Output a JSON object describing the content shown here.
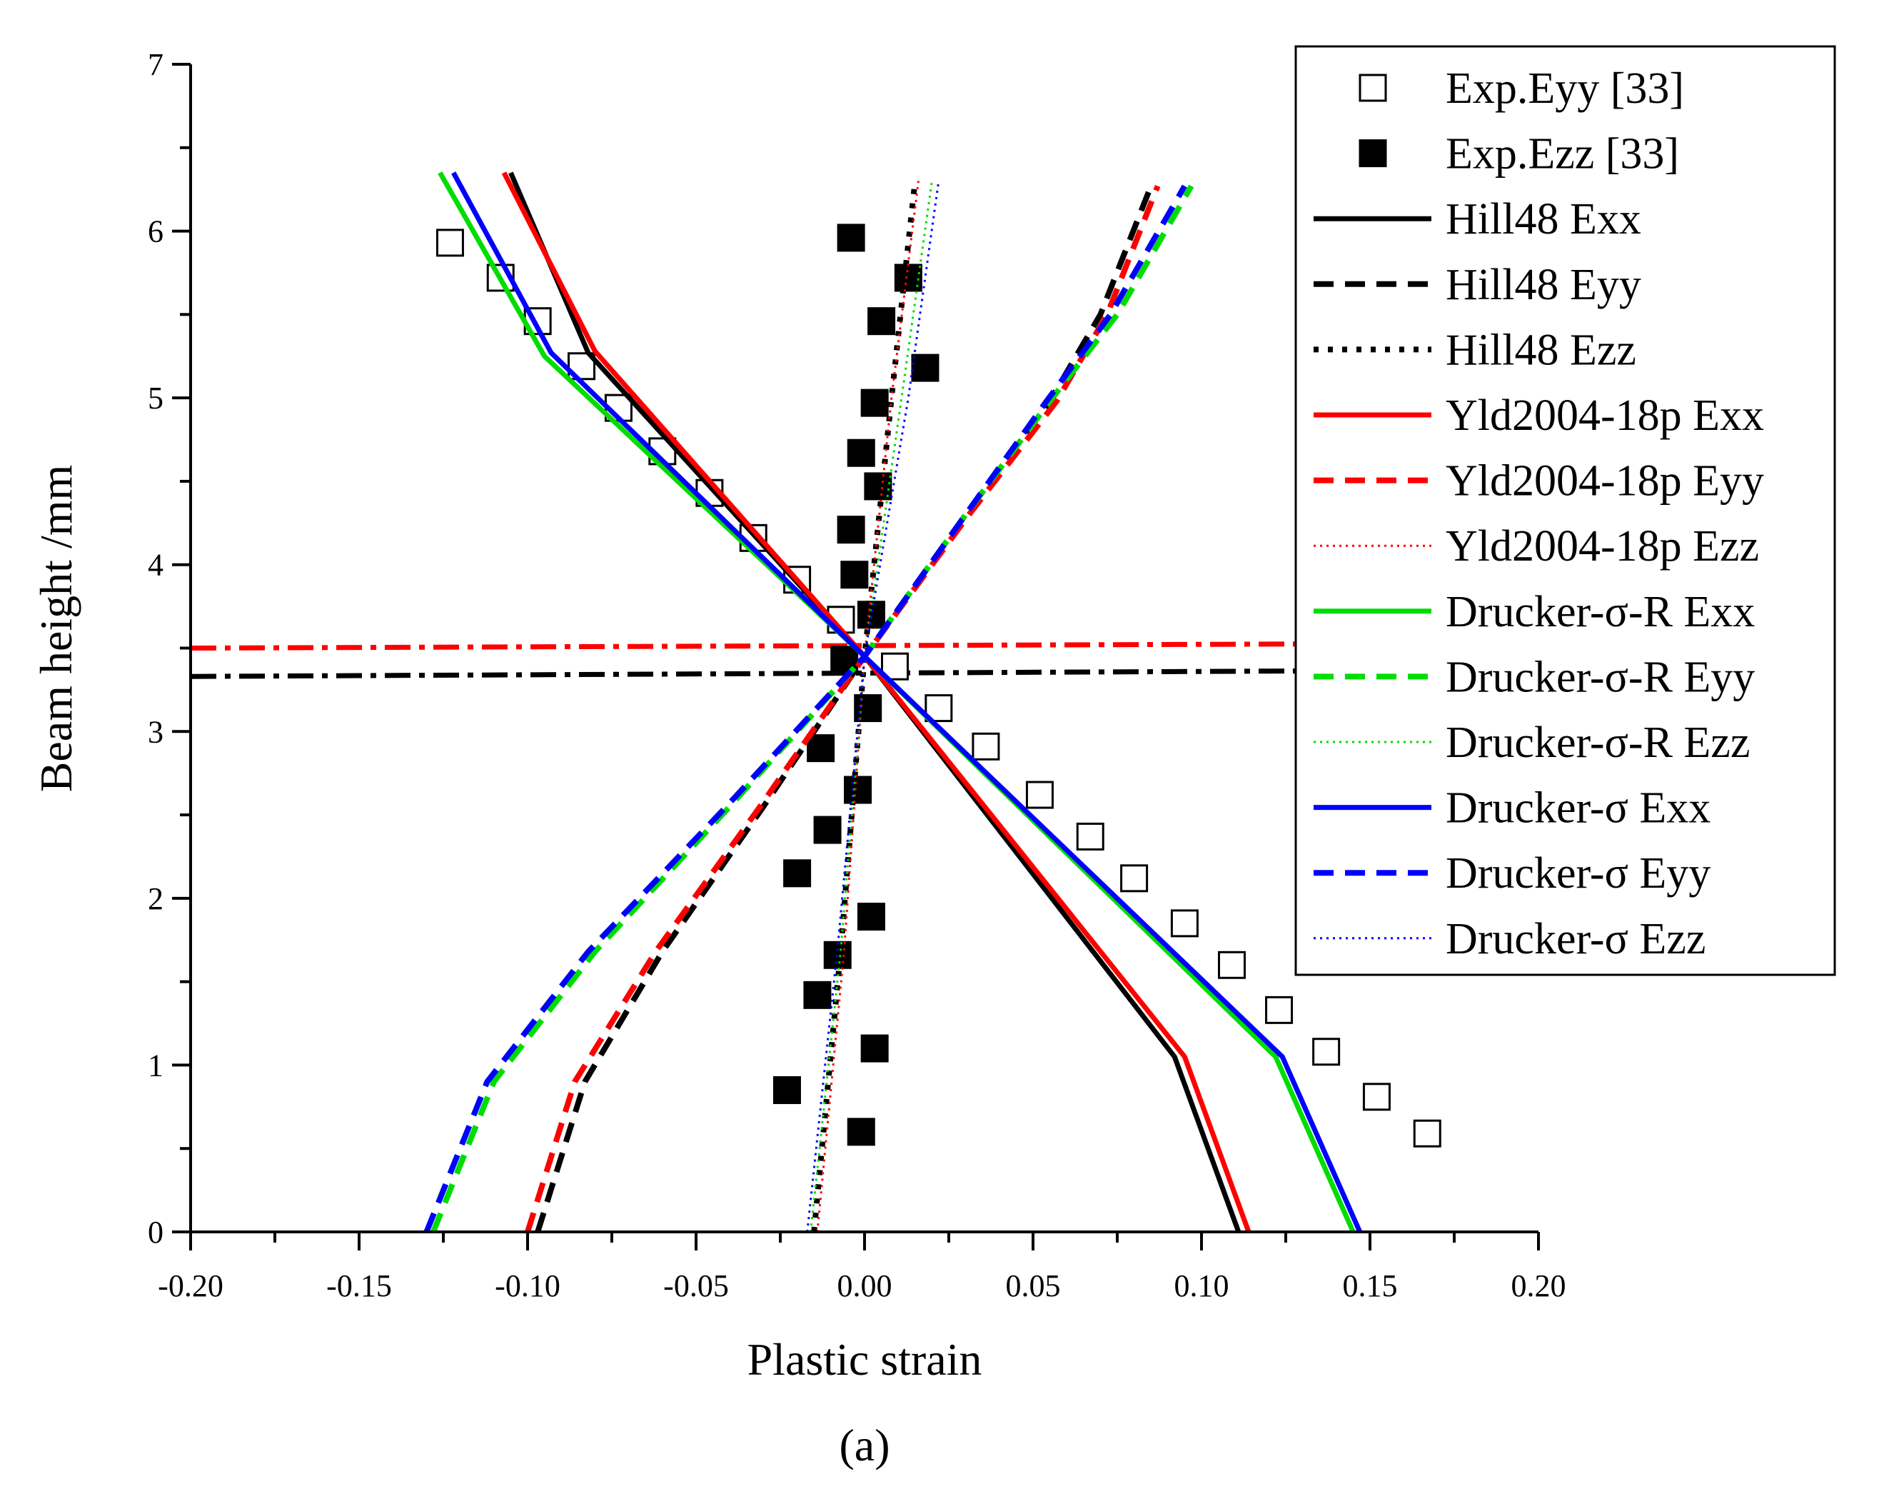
{
  "chart_data": {
    "type": "line",
    "title": "",
    "caption": "(a)",
    "xlabel": "Plastic strain",
    "ylabel": "Beam height /mm",
    "xlim": [
      -0.2,
      0.2
    ],
    "ylim": [
      0,
      7
    ],
    "x_ticks": [
      "-0.20",
      "-0.15",
      "-0.10",
      "-0.05",
      "0.00",
      "0.05",
      "0.10",
      "0.15",
      "0.20"
    ],
    "y_ticks": [
      "0",
      "1",
      "2",
      "3",
      "4",
      "5",
      "6",
      "7"
    ],
    "legend_position": "top-right",
    "colors": {
      "black": "#000000",
      "red": "#ff0000",
      "green": "#00dd00",
      "blue": "#0000ff"
    },
    "series": [
      {
        "name": "Exp.Eyy [33]",
        "kind": "scatter",
        "marker": "open-square",
        "color": "#000000",
        "points": [
          [
            -0.123,
            5.93
          ],
          [
            -0.108,
            5.72
          ],
          [
            -0.097,
            5.46
          ],
          [
            -0.084,
            5.19
          ],
          [
            -0.073,
            4.94
          ],
          [
            -0.06,
            4.68
          ],
          [
            -0.046,
            4.43
          ],
          [
            -0.033,
            4.16
          ],
          [
            -0.02,
            3.91
          ],
          [
            -0.007,
            3.67
          ],
          [
            0.009,
            3.39
          ],
          [
            0.022,
            3.14
          ],
          [
            0.036,
            2.91
          ],
          [
            0.052,
            2.62
          ],
          [
            0.067,
            2.37
          ],
          [
            0.08,
            2.12
          ],
          [
            0.095,
            1.85
          ],
          [
            0.109,
            1.6
          ],
          [
            0.123,
            1.33
          ],
          [
            0.137,
            1.08
          ],
          [
            0.152,
            0.81
          ],
          [
            0.167,
            0.59
          ]
        ]
      },
      {
        "name": "Exp.Ezz [33]",
        "kind": "scatter",
        "marker": "filled-square",
        "color": "#000000",
        "points": [
          [
            -0.004,
            5.96
          ],
          [
            0.013,
            5.72
          ],
          [
            0.005,
            5.46
          ],
          [
            0.018,
            5.18
          ],
          [
            0.003,
            4.97
          ],
          [
            -0.001,
            4.67
          ],
          [
            0.004,
            4.47
          ],
          [
            -0.004,
            4.21
          ],
          [
            -0.003,
            3.94
          ],
          [
            0.002,
            3.7
          ],
          [
            -0.006,
            3.43
          ],
          [
            0.001,
            3.14
          ],
          [
            -0.013,
            2.9
          ],
          [
            -0.002,
            2.65
          ],
          [
            -0.011,
            2.41
          ],
          [
            -0.02,
            2.15
          ],
          [
            0.002,
            1.89
          ],
          [
            -0.008,
            1.66
          ],
          [
            -0.014,
            1.42
          ],
          [
            0.003,
            1.1
          ],
          [
            -0.023,
            0.85
          ],
          [
            -0.001,
            0.6
          ]
        ]
      },
      {
        "name": "Hill48 Exx",
        "kind": "line",
        "dash": "solid",
        "color": "#000000",
        "points": [
          [
            0.111,
            0
          ],
          [
            0.092,
            1.05
          ],
          [
            0.0,
            3.45
          ],
          [
            -0.082,
            5.27
          ],
          [
            -0.105,
            6.35
          ]
        ]
      },
      {
        "name": "Hill48 Eyy",
        "kind": "line",
        "dash": "dashed",
        "color": "#000000",
        "points": [
          [
            -0.097,
            0
          ],
          [
            -0.083,
            0.9
          ],
          [
            -0.06,
            1.68
          ],
          [
            -0.03,
            2.55
          ],
          [
            0.0,
            3.45
          ],
          [
            0.03,
            4.3
          ],
          [
            0.055,
            4.98
          ],
          [
            0.07,
            5.5
          ],
          [
            0.085,
            6.27
          ]
        ]
      },
      {
        "name": "Hill48 Ezz",
        "kind": "line",
        "dash": "dotted",
        "color": "#000000",
        "points": [
          [
            -0.015,
            0
          ],
          [
            -0.007,
            1.7
          ],
          [
            0.0,
            3.45
          ],
          [
            0.008,
            5.0
          ],
          [
            0.015,
            6.3
          ]
        ]
      },
      {
        "name": "Yld2004-18p Exx",
        "kind": "line",
        "dash": "solid",
        "color": "#ff0000",
        "points": [
          [
            0.114,
            0
          ],
          [
            0.095,
            1.05
          ],
          [
            0.0,
            3.45
          ],
          [
            -0.08,
            5.28
          ],
          [
            -0.107,
            6.35
          ]
        ]
      },
      {
        "name": "Yld2004-18p Eyy",
        "kind": "line",
        "dash": "dashed",
        "color": "#ff0000",
        "points": [
          [
            -0.1,
            0
          ],
          [
            -0.086,
            0.9
          ],
          [
            -0.062,
            1.68
          ],
          [
            -0.031,
            2.55
          ],
          [
            0.0,
            3.45
          ],
          [
            0.031,
            4.3
          ],
          [
            0.057,
            4.98
          ],
          [
            0.072,
            5.5
          ],
          [
            0.087,
            6.27
          ]
        ]
      },
      {
        "name": "Yld2004-18p Ezz",
        "kind": "line",
        "dash": "fine-dotted",
        "color": "#ff0000",
        "points": [
          [
            -0.014,
            0
          ],
          [
            -0.006,
            1.7
          ],
          [
            0.0,
            3.45
          ],
          [
            0.008,
            5.0
          ],
          [
            0.016,
            6.3
          ]
        ]
      },
      {
        "name": "Drucker-σ-R Exx",
        "kind": "line",
        "dash": "solid",
        "color": "#00dd00",
        "points": [
          [
            0.145,
            0
          ],
          [
            0.122,
            1.05
          ],
          [
            0.0,
            3.45
          ],
          [
            -0.095,
            5.25
          ],
          [
            -0.126,
            6.35
          ]
        ]
      },
      {
        "name": "Drucker-σ-R Eyy",
        "kind": "line",
        "dash": "dashed",
        "color": "#00dd00",
        "points": [
          [
            -0.128,
            0
          ],
          [
            -0.11,
            0.9
          ],
          [
            -0.08,
            1.68
          ],
          [
            -0.04,
            2.55
          ],
          [
            0.0,
            3.45
          ],
          [
            0.03,
            4.3
          ],
          [
            0.055,
            4.98
          ],
          [
            0.075,
            5.5
          ],
          [
            0.097,
            6.27
          ]
        ]
      },
      {
        "name": "Drucker-σ-R Ezz",
        "kind": "line",
        "dash": "fine-dotted",
        "color": "#00dd00",
        "points": [
          [
            -0.016,
            0
          ],
          [
            -0.007,
            1.7
          ],
          [
            0.0,
            3.45
          ],
          [
            0.011,
            5.0
          ],
          [
            0.02,
            6.3
          ]
        ]
      },
      {
        "name": "Drucker-σ Exx",
        "kind": "line",
        "dash": "solid",
        "color": "#0000ff",
        "points": [
          [
            0.147,
            0
          ],
          [
            0.124,
            1.05
          ],
          [
            0.0,
            3.45
          ],
          [
            -0.093,
            5.27
          ],
          [
            -0.122,
            6.35
          ]
        ]
      },
      {
        "name": "Drucker-σ Eyy",
        "kind": "line",
        "dash": "dashed",
        "color": "#0000ff",
        "points": [
          [
            -0.13,
            0
          ],
          [
            -0.112,
            0.9
          ],
          [
            -0.082,
            1.68
          ],
          [
            -0.041,
            2.55
          ],
          [
            0.0,
            3.45
          ],
          [
            0.03,
            4.3
          ],
          [
            0.054,
            4.98
          ],
          [
            0.073,
            5.5
          ],
          [
            0.095,
            6.27
          ]
        ]
      },
      {
        "name": "Drucker-σ Ezz",
        "kind": "line",
        "dash": "fine-dotted",
        "color": "#0000ff",
        "points": [
          [
            -0.017,
            0
          ],
          [
            -0.008,
            1.7
          ],
          [
            0.0,
            3.45
          ],
          [
            0.013,
            5.0
          ],
          [
            0.022,
            6.3
          ]
        ]
      }
    ],
    "reference_lines": [
      {
        "color": "#ff0000",
        "style": "dash-dot",
        "points": [
          [
            -0.2,
            3.5
          ],
          [
            0.2,
            3.53
          ]
        ]
      },
      {
        "color": "#000000",
        "style": "dash-dot",
        "points": [
          [
            -0.2,
            3.33
          ],
          [
            0.2,
            3.37
          ]
        ]
      }
    ]
  }
}
